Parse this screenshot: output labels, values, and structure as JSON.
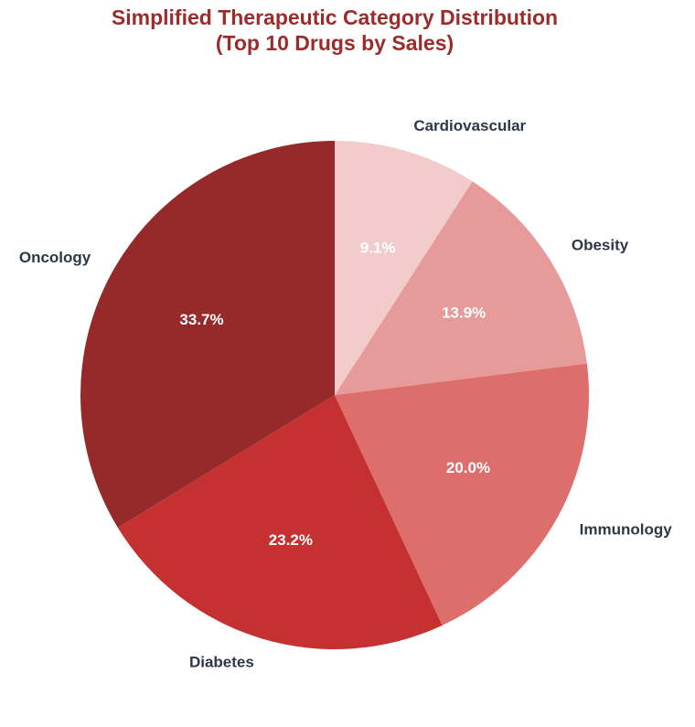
{
  "chart_data": {
    "type": "pie",
    "title": [
      "Simplified Therapeutic Category Distribution",
      "(Top 10 Drugs by Sales)"
    ],
    "categories": [
      "Oncology",
      "Diabetes",
      "Immunology",
      "Obesity",
      "Cardiovascular"
    ],
    "values": [
      33.7,
      23.2,
      20.0,
      13.9,
      9.1
    ],
    "value_labels": [
      "33.7%",
      "23.2%",
      "20.0%",
      "13.9%",
      "9.1%"
    ],
    "colors": [
      "#962a2b",
      "#c53030",
      "#de6e6c",
      "#e69a9a",
      "#f2cbcb"
    ],
    "start_angle": 90,
    "direction": "counterclockwise"
  }
}
